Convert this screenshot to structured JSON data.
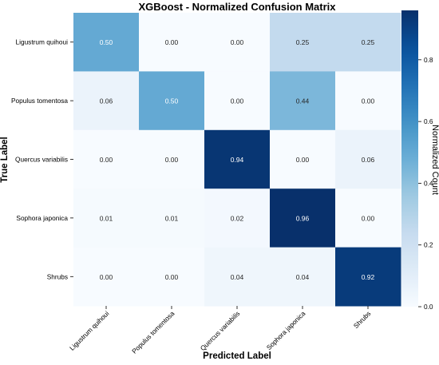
{
  "chart_data": {
    "type": "heatmap",
    "title": "XGBoost - Normalized Confusion Matrix",
    "xlabel": "Predicted Label",
    "ylabel": "True Label",
    "colorbar_label": "Normalized Count",
    "row_labels": [
      "Ligustrum quihoui",
      "Populus tomentosa",
      "Quercus variabilis",
      "Sophora japonica",
      "Shrubs"
    ],
    "col_labels": [
      "Ligustrum quihoui",
      "Populus tomentosa",
      "Quercus variabilis",
      "Sophora japonica",
      "Shrubs"
    ],
    "values": [
      [
        0.5,
        0.0,
        0.0,
        0.25,
        0.25
      ],
      [
        0.06,
        0.5,
        0.0,
        0.44,
        0.0
      ],
      [
        0.0,
        0.0,
        0.94,
        0.0,
        0.06
      ],
      [
        0.01,
        0.01,
        0.02,
        0.96,
        0.0
      ],
      [
        0.0,
        0.0,
        0.04,
        0.04,
        0.92
      ]
    ],
    "cell_labels": [
      [
        "0.50",
        "0.00",
        "0.00",
        "0.25",
        "0.25"
      ],
      [
        "0.06",
        "0.50",
        "0.00",
        "0.44",
        "0.00"
      ],
      [
        "0.00",
        "0.00",
        "0.94",
        "0.00",
        "0.06"
      ],
      [
        "0.01",
        "0.01",
        "0.02",
        "0.96",
        "0.00"
      ],
      [
        "0.00",
        "0.00",
        "0.04",
        "0.04",
        "0.92"
      ]
    ],
    "colorbar_range": [
      0.0,
      0.96
    ],
    "colorbar_ticks": [
      0.0,
      0.2,
      0.4,
      0.6,
      0.8
    ],
    "colorbar_tick_labels": [
      "0.0",
      "0.2",
      "0.4",
      "0.6",
      "0.8"
    ],
    "colormap": "Blues"
  }
}
